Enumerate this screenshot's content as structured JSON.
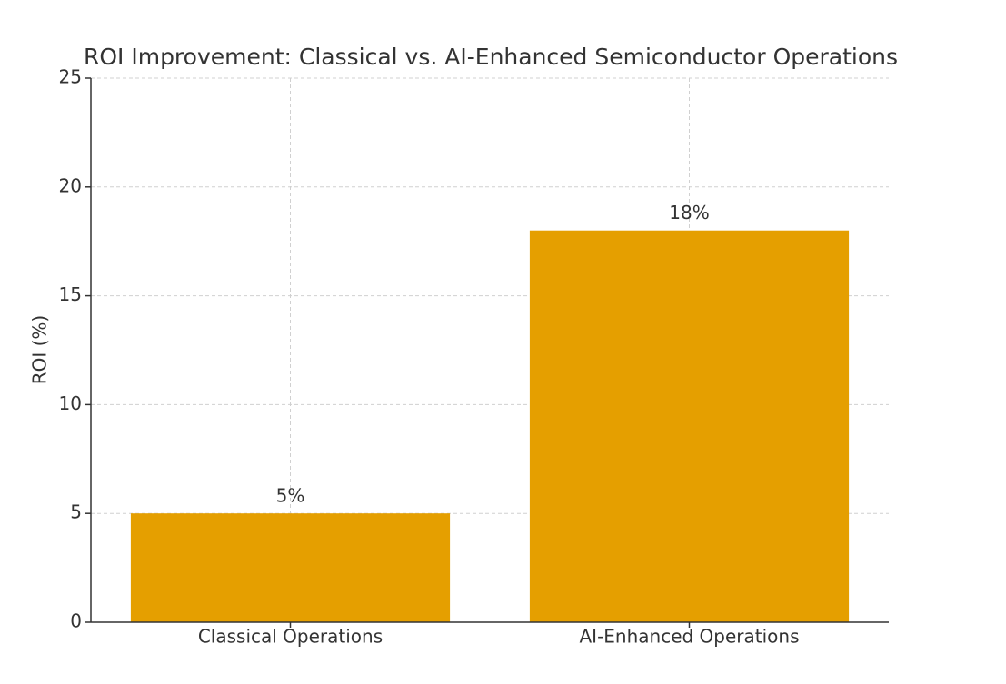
{
  "chart_data": {
    "type": "bar",
    "title": "ROI Improvement: Classical vs. AI-Enhanced Semiconductor Operations",
    "y_label": "ROI (%)",
    "categories": [
      "Classical Operations",
      "AI-Enhanced Operations"
    ],
    "values": [
      5,
      18
    ],
    "value_labels": [
      "5%",
      "18%"
    ],
    "color": "#e59f00",
    "ylim": [
      0,
      25
    ],
    "yticks": [
      0,
      5,
      10,
      15,
      20,
      25
    ],
    "grid": true
  }
}
